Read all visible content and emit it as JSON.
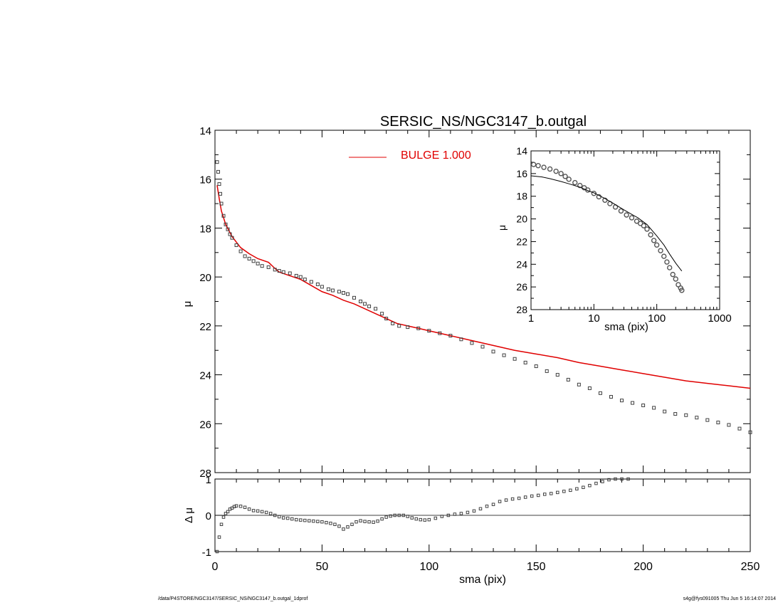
{
  "title": "SERSIC_NS/NGC3147_b.outgal",
  "footer": {
    "left": "/data/P4STORE/NGC3147/SERSIC_NS/NGC3147_b.outgal_1dprof",
    "right": "s4g@fys091005  Thu Jun  5 16:14:07 2014"
  },
  "colors": {
    "model": "#e00000",
    "data": "#404040",
    "axes": "#000000"
  },
  "chart_data": [
    {
      "id": "main",
      "type": "scatter",
      "title": "SERSIC_NS/NGC3147_b.outgal",
      "ylabel": "μ",
      "xlim": [
        0,
        250
      ],
      "ylim": [
        28,
        14
      ],
      "y_inverted": true,
      "yticks": [
        14,
        16,
        18,
        20,
        22,
        24,
        26,
        28
      ],
      "legend": {
        "label": "BULGE  1.000",
        "placement": "top-center"
      },
      "series": [
        {
          "name": "BULGE  1.000",
          "kind": "line",
          "x": [
            1,
            2,
            3,
            5,
            8,
            12,
            16,
            20,
            25,
            28,
            30,
            35,
            40,
            45,
            50,
            55,
            60,
            65,
            70,
            75,
            80,
            85,
            90,
            95,
            100,
            110,
            120,
            130,
            140,
            150,
            160,
            170,
            180,
            190,
            200,
            210,
            220,
            230,
            240,
            250
          ],
          "y": [
            16.25,
            16.8,
            17.3,
            17.85,
            18.35,
            18.8,
            19.05,
            19.25,
            19.4,
            19.65,
            19.8,
            19.95,
            20.1,
            20.35,
            20.6,
            20.75,
            20.95,
            21.1,
            21.3,
            21.5,
            21.7,
            21.9,
            22.0,
            22.1,
            22.2,
            22.4,
            22.6,
            22.8,
            23.0,
            23.15,
            23.3,
            23.5,
            23.65,
            23.8,
            23.95,
            24.1,
            24.25,
            24.35,
            24.45,
            24.55
          ]
        },
        {
          "name": "data",
          "kind": "markers",
          "x": [
            1,
            1.5,
            2,
            2.5,
            3,
            4,
            5,
            6,
            7,
            8,
            10,
            12,
            14,
            16,
            18,
            20,
            22,
            25,
            28,
            30,
            32,
            35,
            38,
            40,
            42,
            45,
            48,
            50,
            53,
            55,
            58,
            60,
            62,
            65,
            68,
            70,
            72,
            75,
            78,
            80,
            83,
            86,
            90,
            95,
            100,
            105,
            110,
            115,
            120,
            125,
            130,
            135,
            140,
            145,
            150,
            155,
            160,
            165,
            170,
            175,
            180,
            185,
            190,
            195,
            200,
            205,
            210,
            215,
            220,
            225,
            230,
            235,
            240,
            245,
            250
          ],
          "y": [
            15.3,
            15.7,
            16.2,
            16.6,
            17.0,
            17.5,
            17.85,
            18.05,
            18.25,
            18.4,
            18.7,
            18.95,
            19.15,
            19.25,
            19.35,
            19.45,
            19.55,
            19.6,
            19.7,
            19.75,
            19.8,
            19.85,
            19.95,
            20.0,
            20.1,
            20.2,
            20.3,
            20.4,
            20.5,
            20.55,
            20.6,
            20.65,
            20.7,
            20.85,
            21.0,
            21.1,
            21.2,
            21.3,
            21.5,
            21.7,
            21.9,
            22.0,
            22.05,
            22.1,
            22.2,
            22.3,
            22.4,
            22.55,
            22.7,
            22.85,
            23.05,
            23.2,
            23.35,
            23.5,
            23.65,
            23.85,
            24.0,
            24.2,
            24.4,
            24.55,
            24.75,
            24.9,
            25.05,
            25.15,
            25.25,
            25.35,
            25.5,
            25.6,
            25.65,
            25.75,
            25.85,
            25.95,
            26.05,
            26.2,
            26.35
          ]
        }
      ]
    },
    {
      "id": "residual",
      "type": "scatter",
      "xlabel": "sma (pix)",
      "ylabel": "Δ μ",
      "xlim": [
        0,
        250
      ],
      "ylim": [
        -1,
        1
      ],
      "xticks": [
        0,
        50,
        100,
        150,
        200,
        250
      ],
      "yticks": [
        -1,
        0,
        1
      ],
      "zero_line": true,
      "series": [
        {
          "name": "residual",
          "kind": "markers",
          "x": [
            1,
            2,
            3,
            4,
            5,
            6,
            7,
            8,
            9,
            10,
            12,
            14,
            16,
            18,
            20,
            22,
            24,
            26,
            28,
            30,
            32,
            34,
            36,
            38,
            40,
            42,
            44,
            46,
            48,
            50,
            52,
            54,
            56,
            58,
            60,
            62,
            64,
            66,
            68,
            70,
            72,
            74,
            76,
            78,
            80,
            82,
            84,
            86,
            88,
            90,
            92,
            94,
            96,
            98,
            100,
            103,
            106,
            109,
            112,
            115,
            118,
            121,
            124,
            127,
            130,
            133,
            136,
            139,
            142,
            145,
            148,
            151,
            154,
            157,
            160,
            163,
            166,
            169,
            172,
            175,
            178,
            181,
            184,
            187,
            190,
            193
          ],
          "y": [
            -1.0,
            -0.6,
            -0.25,
            -0.05,
            0.05,
            0.1,
            0.17,
            0.2,
            0.24,
            0.26,
            0.25,
            0.22,
            0.17,
            0.13,
            0.12,
            0.1,
            0.08,
            0.05,
            0.0,
            -0.04,
            -0.07,
            -0.08,
            -0.1,
            -0.12,
            -0.13,
            -0.14,
            -0.15,
            -0.16,
            -0.17,
            -0.18,
            -0.2,
            -0.22,
            -0.25,
            -0.3,
            -0.38,
            -0.32,
            -0.25,
            -0.18,
            -0.15,
            -0.17,
            -0.18,
            -0.19,
            -0.16,
            -0.1,
            -0.05,
            -0.02,
            0.0,
            0.0,
            0.0,
            -0.03,
            -0.07,
            -0.1,
            -0.12,
            -0.13,
            -0.12,
            -0.08,
            -0.03,
            0.0,
            0.03,
            0.05,
            0.08,
            0.12,
            0.18,
            0.25,
            0.3,
            0.38,
            0.42,
            0.45,
            0.47,
            0.5,
            0.53,
            0.55,
            0.58,
            0.6,
            0.63,
            0.66,
            0.69,
            0.73,
            0.77,
            0.82,
            0.88,
            0.93,
            0.98,
            1.0,
            1.0,
            1.0
          ]
        }
      ]
    },
    {
      "id": "inset",
      "type": "scatter",
      "xlabel": "sma (pix)",
      "ylabel": "μ",
      "x_scale": "log",
      "xlim": [
        1,
        1000
      ],
      "ylim": [
        28,
        14
      ],
      "y_inverted": true,
      "xticks": [
        1,
        10,
        100,
        1000
      ],
      "xticklabels": [
        "1",
        "10",
        "100",
        "1000"
      ],
      "yticks": [
        14,
        16,
        18,
        20,
        22,
        24,
        26,
        28
      ],
      "series": [
        {
          "name": "model",
          "kind": "line",
          "x": [
            1,
            1.5,
            2,
            3,
            4,
            6,
            8,
            10,
            15,
            20,
            30,
            40,
            50,
            70,
            100,
            130,
            160,
            200,
            250
          ],
          "y": [
            16.2,
            16.3,
            16.45,
            16.7,
            16.9,
            17.2,
            17.5,
            17.7,
            18.2,
            18.6,
            19.2,
            19.6,
            19.9,
            20.5,
            21.5,
            22.3,
            23.1,
            23.9,
            24.6
          ]
        },
        {
          "name": "data",
          "kind": "markers",
          "x": [
            1.1,
            1.3,
            1.6,
            2,
            2.5,
            3,
            3.5,
            4,
            5,
            6,
            7,
            8,
            10,
            12,
            15,
            18,
            22,
            27,
            33,
            40,
            48,
            55,
            62,
            70,
            80,
            90,
            100,
            115,
            130,
            145,
            160,
            180,
            200,
            220,
            240,
            250
          ],
          "y": [
            15.2,
            15.3,
            15.45,
            15.6,
            15.8,
            16.0,
            16.25,
            16.5,
            16.8,
            17.05,
            17.25,
            17.45,
            17.75,
            18.05,
            18.35,
            18.65,
            18.95,
            19.3,
            19.65,
            19.9,
            20.2,
            20.4,
            20.6,
            20.9,
            21.4,
            21.9,
            22.3,
            22.8,
            23.3,
            23.8,
            24.3,
            24.9,
            25.3,
            25.8,
            26.1,
            26.3
          ]
        }
      ]
    }
  ]
}
